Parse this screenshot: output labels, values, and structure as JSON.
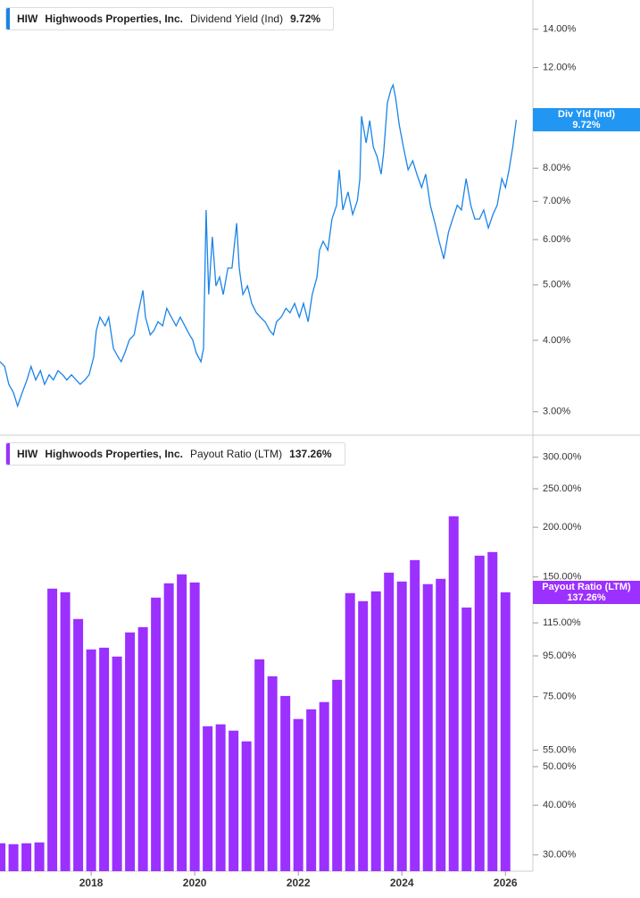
{
  "chart_data": [
    {
      "type": "line",
      "ticker": "HIW",
      "company": "Highwoods Properties, Inc.",
      "log_scale": true,
      "xlim": [
        2016.24,
        2026.53
      ],
      "ylim": [
        2.73,
        15.75
      ],
      "yticks": [
        {
          "value": 3,
          "label": "3.00%"
        },
        {
          "value": 4,
          "label": "4.00%"
        },
        {
          "value": 5,
          "label": "5.00%"
        },
        {
          "value": 6,
          "label": "6.00%"
        },
        {
          "value": 7,
          "label": "7.00%"
        },
        {
          "value": 8,
          "label": "8.00%"
        },
        {
          "value": 12,
          "label": "12.00%"
        },
        {
          "value": 14,
          "label": "14.00%"
        }
      ],
      "x": [
        2016.24,
        2016.33,
        2016.41,
        2016.5,
        2016.58,
        2016.67,
        2016.76,
        2016.84,
        2016.93,
        2017.02,
        2017.1,
        2017.19,
        2017.27,
        2017.36,
        2017.45,
        2017.53,
        2017.62,
        2017.71,
        2017.79,
        2017.88,
        2017.96,
        2018.05,
        2018.1,
        2018.17,
        2018.27,
        2018.34,
        2018.43,
        2018.52,
        2018.58,
        2018.65,
        2018.74,
        2018.83,
        2018.91,
        2019.0,
        2019.05,
        2019.14,
        2019.21,
        2019.29,
        2019.38,
        2019.46,
        2019.55,
        2019.64,
        2019.72,
        2019.81,
        2019.9,
        2019.96,
        2020.03,
        2020.12,
        2020.17,
        2020.22,
        2020.27,
        2020.34,
        2020.41,
        2020.48,
        2020.55,
        2020.64,
        2020.72,
        2020.81,
        2020.86,
        2020.93,
        2021.02,
        2021.1,
        2021.19,
        2021.27,
        2021.36,
        2021.45,
        2021.52,
        2021.58,
        2021.67,
        2021.76,
        2021.84,
        2021.93,
        2022.02,
        2022.1,
        2022.19,
        2022.27,
        2022.36,
        2022.41,
        2022.48,
        2022.57,
        2022.65,
        2022.74,
        2022.79,
        2022.86,
        2022.96,
        2023.05,
        2023.14,
        2023.19,
        2023.22,
        2023.31,
        2023.38,
        2023.45,
        2023.52,
        2023.6,
        2023.65,
        2023.72,
        2023.79,
        2023.83,
        2023.88,
        2023.95,
        2024.03,
        2024.12,
        2024.21,
        2024.29,
        2024.38,
        2024.46,
        2024.55,
        2024.64,
        2024.72,
        2024.81,
        2024.9,
        2024.98,
        2025.07,
        2025.15,
        2025.24,
        2025.33,
        2025.41,
        2025.5,
        2025.58,
        2025.67,
        2025.76,
        2025.84,
        2025.93,
        2026.0,
        2026.07,
        2026.14,
        2026.21
      ],
      "series": [
        {
          "name": "Dividend Yield (Ind)",
          "short_name": "Div Yld (Ind)",
          "color": "#1a84e8",
          "tag_color": "#2196f3",
          "last_value_label": "9.72%",
          "values": [
            3.67,
            3.6,
            3.35,
            3.24,
            3.07,
            3.24,
            3.41,
            3.6,
            3.41,
            3.54,
            3.35,
            3.48,
            3.41,
            3.54,
            3.48,
            3.41,
            3.48,
            3.41,
            3.35,
            3.41,
            3.48,
            3.74,
            4.16,
            4.39,
            4.24,
            4.39,
            3.87,
            3.74,
            3.67,
            3.8,
            4.01,
            4.09,
            4.47,
            4.89,
            4.39,
            4.09,
            4.16,
            4.31,
            4.24,
            4.55,
            4.39,
            4.24,
            4.39,
            4.24,
            4.09,
            4.01,
            3.8,
            3.67,
            3.87,
            6.76,
            4.81,
            6.07,
            4.98,
            5.16,
            4.81,
            5.35,
            5.35,
            6.41,
            5.35,
            4.81,
            4.98,
            4.64,
            4.47,
            4.39,
            4.31,
            4.16,
            4.09,
            4.31,
            4.39,
            4.55,
            4.47,
            4.64,
            4.39,
            4.64,
            4.31,
            4.81,
            5.16,
            5.75,
            5.96,
            5.75,
            6.52,
            6.89,
            7.95,
            6.76,
            7.27,
            6.64,
            7.01,
            7.67,
            9.86,
            8.86,
            9.69,
            8.7,
            8.39,
            7.81,
            8.55,
            10.41,
            10.99,
            11.19,
            10.6,
            9.52,
            8.7,
            7.95,
            8.24,
            7.81,
            7.4,
            7.81,
            6.89,
            6.41,
            5.96,
            5.55,
            6.18,
            6.52,
            6.89,
            6.76,
            7.67,
            6.89,
            6.52,
            6.52,
            6.76,
            6.29,
            6.64,
            6.89,
            7.67,
            7.4,
            7.95,
            8.7,
            9.72
          ]
        }
      ]
    },
    {
      "type": "bar",
      "ticker": "HIW",
      "company": "Highwoods Properties, Inc.",
      "log_scale": true,
      "xlim": [
        2016.24,
        2026.53
      ],
      "xticks": [
        2018,
        2020,
        2022,
        2024,
        2026
      ],
      "ylim": [
        27.3,
        341
      ],
      "yticks": [
        {
          "value": 30,
          "label": "30.00%"
        },
        {
          "value": 40,
          "label": "40.00%"
        },
        {
          "value": 50,
          "label": "50.00%"
        },
        {
          "value": 55,
          "label": "55.00%"
        },
        {
          "value": 75,
          "label": "75.00%"
        },
        {
          "value": 95,
          "label": "95.00%"
        },
        {
          "value": 115,
          "label": "115.00%"
        },
        {
          "value": 150,
          "label": "150.00%"
        },
        {
          "value": 200,
          "label": "200.00%"
        },
        {
          "value": 250,
          "label": "250.00%"
        },
        {
          "value": 300,
          "label": "300.00%"
        }
      ],
      "x": [
        2016.25,
        2016.5,
        2016.75,
        2017.0,
        2017.25,
        2017.5,
        2017.75,
        2018.0,
        2018.25,
        2018.5,
        2018.75,
        2019.0,
        2019.25,
        2019.5,
        2019.75,
        2020.0,
        2020.25,
        2020.5,
        2020.75,
        2021.0,
        2021.25,
        2021.5,
        2021.75,
        2022.0,
        2022.25,
        2022.5,
        2022.75,
        2023.0,
        2023.25,
        2023.5,
        2023.75,
        2024.0,
        2024.25,
        2024.5,
        2024.75,
        2025.0,
        2025.25,
        2025.5,
        2025.75,
        2026.0
      ],
      "series": [
        {
          "name": "Payout Ratio (LTM)",
          "color": "#9b30ff",
          "tag_color": "#9b30ff",
          "last_value_label": "137.26%",
          "values": [
            32.09,
            31.92,
            32.09,
            32.25,
            140.2,
            137.3,
            117.6,
            98.6,
            99.6,
            94.6,
            108.8,
            112.2,
            133.1,
            144.6,
            152.3,
            145.3,
            63.2,
            63.9,
            61.6,
            57.9,
            93.1,
            84.4,
            75.3,
            65.9,
            69.7,
            72.7,
            82.7,
            136.6,
            130.4,
            138.0,
            153.8,
            146.1,
            165.4,
            143.9,
            148.4,
            213.2,
            125.7,
            169.7,
            173.3,
            137.26
          ]
        }
      ]
    }
  ]
}
